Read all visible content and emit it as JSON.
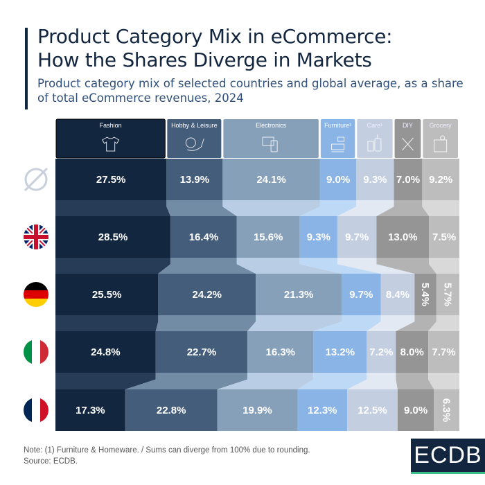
{
  "title_line1": "Product Category Mix in eCommerce:",
  "title_line2": "How the Shares Diverge in Markets",
  "subtitle": "Product category mix of selected countries and global average, as a share of total eCommerce revenues, 2024",
  "note": "Note: (1) Furniture & Homeware. / Sums can diverge from 100% due to rounding.",
  "source": "Source: ECDB.",
  "logo": "ECDB",
  "chart_data": {
    "type": "bar",
    "stacked": true,
    "orientation": "horizontal",
    "unit": "%",
    "categories": [
      "Global average",
      "United Kingdom",
      "Germany",
      "Italy",
      "France"
    ],
    "category_icons": [
      "average-symbol-icon",
      "uk-flag-icon",
      "germany-flag-icon",
      "italy-flag-icon",
      "france-flag-icon"
    ],
    "series": [
      {
        "name": "Fashion",
        "color": "#13263f",
        "link_color": "#263c57",
        "icon": "tshirt-icon",
        "values": [
          27.5,
          28.5,
          25.5,
          24.8,
          17.3
        ]
      },
      {
        "name": "Hobby & Leisure",
        "color": "#445d7b",
        "link_color": "#728ca5",
        "icon": "yarn-icon",
        "values": [
          13.9,
          16.4,
          24.2,
          22.7,
          22.8
        ]
      },
      {
        "name": "Electronics",
        "color": "#87a0ba",
        "link_color": "#b9cde4",
        "icon": "devices-icon",
        "values": [
          24.1,
          15.6,
          21.3,
          16.3,
          19.9
        ]
      },
      {
        "name": "Furniture¹",
        "color": "#8ab4e5",
        "link_color": "#bdd9f5",
        "icon": "sofa-icon",
        "values": [
          9.0,
          9.3,
          9.7,
          13.2,
          12.3
        ]
      },
      {
        "name": "Care¹",
        "color": "#c3cee0",
        "link_color": "#e3e9f2",
        "icon": "bottles-icon",
        "values": [
          9.3,
          9.7,
          8.4,
          7.2,
          12.5
        ]
      },
      {
        "name": "DIY",
        "color": "#959595",
        "link_color": "#b3b3b3",
        "icon": "tools-icon",
        "values": [
          7.0,
          13.0,
          5.4,
          8.0,
          9.0
        ]
      },
      {
        "name": "Grocery",
        "color": "#bdbdbd",
        "link_color": "#d9d9d9",
        "icon": "grocery-bag-icon",
        "values": [
          9.2,
          7.5,
          5.7,
          7.7,
          6.3
        ]
      }
    ],
    "labels": [
      [
        "27.5%",
        "13.9%",
        "24.1%",
        "9.0%",
        "9.3%",
        "7.0%",
        "9.2%"
      ],
      [
        "28.5%",
        "16.4%",
        "15.6%",
        "9.3%",
        "9.7%",
        "13.0%",
        "7.5%"
      ],
      [
        "25.5%",
        "24.2%",
        "21.3%",
        "9.7%",
        "8.4%",
        "5.4%",
        "5.7%"
      ],
      [
        "24.8%",
        "22.7%",
        "16.3%",
        "13.2%",
        "7.2%",
        "8.0%",
        "7.7%"
      ],
      [
        "17.3%",
        "22.8%",
        "19.9%",
        "12.3%",
        "12.5%",
        "9.0%",
        "6.3%"
      ]
    ],
    "legend": "top"
  }
}
